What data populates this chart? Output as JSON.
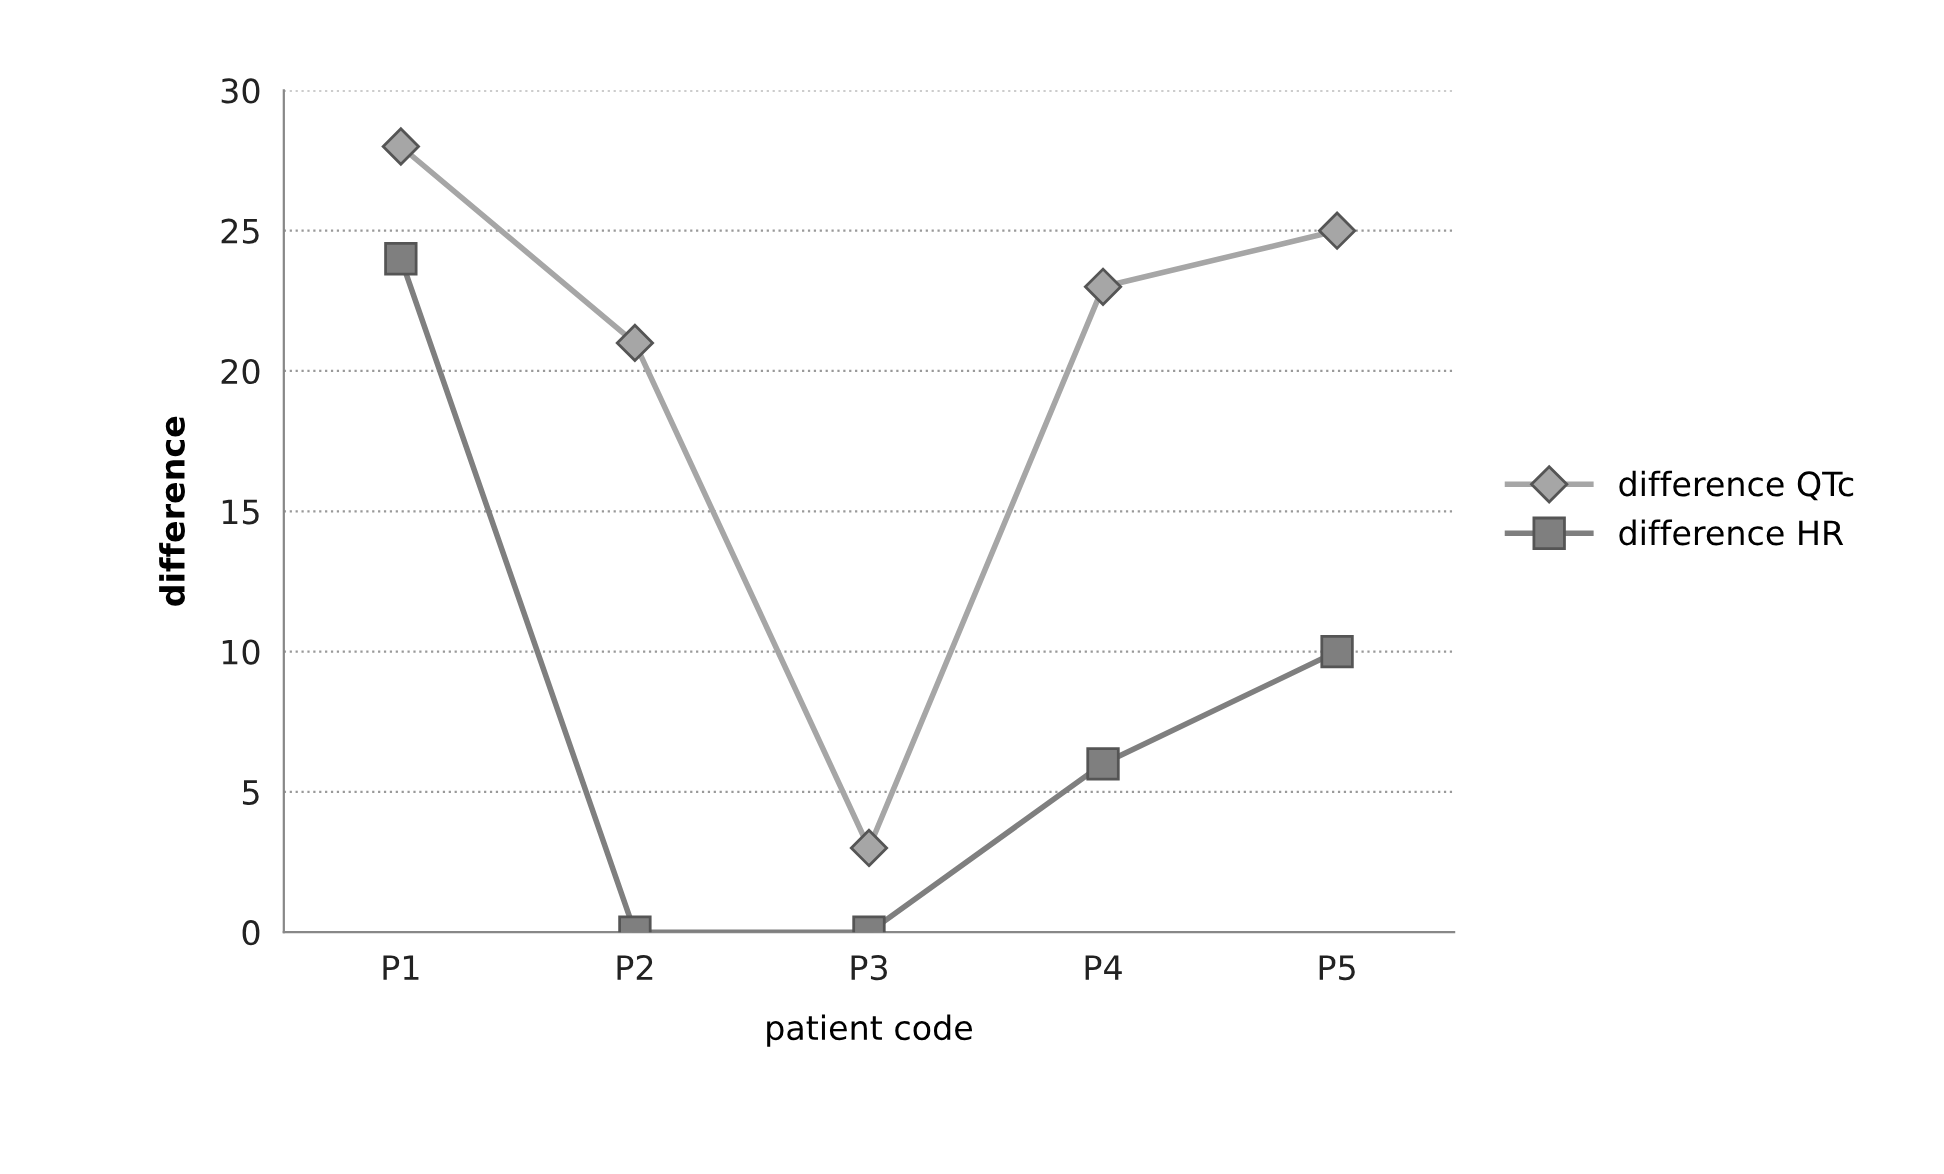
{
  "chart_data": {
    "type": "line",
    "xlabel": "patient code",
    "ylabel": "difference",
    "categories": [
      "P1",
      "P2",
      "P3",
      "P4",
      "P5"
    ],
    "series": [
      {
        "name": "difference QTc",
        "color": "#a6a6a6",
        "marker": "diamond",
        "values": [
          28,
          21,
          3,
          23,
          25
        ]
      },
      {
        "name": "difference HR",
        "color": "#7f7f7f",
        "marker": "square",
        "values": [
          24,
          0,
          0,
          6,
          10
        ]
      }
    ],
    "ylim": [
      0,
      30
    ],
    "yticks": [
      0,
      5,
      10,
      15,
      20,
      25,
      30
    ],
    "grid": "y",
    "legend": "right",
    "line_style": "solid"
  }
}
